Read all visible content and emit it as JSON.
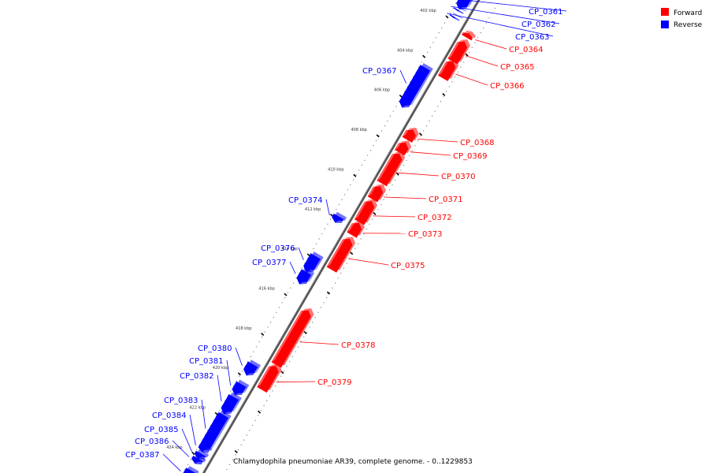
{
  "caption": "Chlamydophila pneumoniae AR39, complete genome. - 0..1229853",
  "legend": [
    {
      "label": "Forward",
      "color": "#ff0000"
    },
    {
      "label": "Reverse",
      "color": "#0000ff"
    }
  ],
  "colors": {
    "forward": "#ff0000",
    "reverse": "#0000ff",
    "backbone": "#555555"
  },
  "kbp_ticks": [
    "402 kbp",
    "404 kbp",
    "406 kbp",
    "408 kbp",
    "410 kbp",
    "412 kbp",
    "414 kbp",
    "416 kbp",
    "418 kbp",
    "420 kbp",
    "422 kbp",
    "424 kbp"
  ],
  "genes": [
    {
      "label": "CP_0361",
      "strand": "reverse",
      "start_kbp": 400.85,
      "end_kbp": 401.45
    },
    {
      "label": "CP_0362",
      "strand": "reverse",
      "start_kbp": 401.5,
      "end_kbp": 401.55
    },
    {
      "label": "CP_0363",
      "strand": "reverse",
      "start_kbp": 401.85,
      "end_kbp": 401.9
    },
    {
      "label": "CP_0364",
      "strand": "forward",
      "start_kbp": 402.15,
      "end_kbp": 402.35
    },
    {
      "label": "CP_0365",
      "strand": "forward",
      "start_kbp": 402.55,
      "end_kbp": 403.55
    },
    {
      "label": "CP_0366",
      "strand": "forward",
      "start_kbp": 403.55,
      "end_kbp": 404.4
    },
    {
      "label": "CP_0367",
      "strand": "reverse",
      "start_kbp": 404.4,
      "end_kbp": 406.4
    },
    {
      "label": "CP_0368",
      "strand": "forward",
      "start_kbp": 407.0,
      "end_kbp": 407.5
    },
    {
      "label": "CP_0369",
      "strand": "forward",
      "start_kbp": 407.65,
      "end_kbp": 408.15
    },
    {
      "label": "CP_0370",
      "strand": "forward",
      "start_kbp": 408.2,
      "end_kbp": 409.7
    },
    {
      "label": "CP_0371",
      "strand": "forward",
      "start_kbp": 409.85,
      "end_kbp": 410.5
    },
    {
      "label": "CP_0372",
      "strand": "forward",
      "start_kbp": 410.6,
      "end_kbp": 411.65
    },
    {
      "label": "CP_0373",
      "strand": "forward",
      "start_kbp": 411.7,
      "end_kbp": 412.3
    },
    {
      "label": "CP_0374",
      "strand": "reverse",
      "start_kbp": 411.9,
      "end_kbp": 412.2
    },
    {
      "label": "CP_0375",
      "strand": "forward",
      "start_kbp": 412.5,
      "end_kbp": 414.05
    },
    {
      "label": "CP_0376",
      "strand": "reverse",
      "start_kbp": 413.9,
      "end_kbp": 414.7
    },
    {
      "label": "CP_0377",
      "strand": "reverse",
      "start_kbp": 414.7,
      "end_kbp": 415.3
    },
    {
      "label": "CP_0378",
      "strand": "forward",
      "start_kbp": 416.1,
      "end_kbp": 418.85
    },
    {
      "label": "CP_0379",
      "strand": "forward",
      "start_kbp": 418.9,
      "end_kbp": 420.1
    },
    {
      "label": "CP_0380",
      "strand": "reverse",
      "start_kbp": 419.35,
      "end_kbp": 419.9
    },
    {
      "label": "CP_0381",
      "strand": "reverse",
      "start_kbp": 420.35,
      "end_kbp": 420.9
    },
    {
      "label": "CP_0382",
      "strand": "reverse",
      "start_kbp": 421.0,
      "end_kbp": 421.85
    },
    {
      "label": "CP_0383",
      "strand": "reverse",
      "start_kbp": 421.9,
      "end_kbp": 423.7
    },
    {
      "label": "CP_0384",
      "strand": "reverse",
      "start_kbp": 423.55,
      "end_kbp": 423.75
    },
    {
      "label": "CP_0385",
      "strand": "reverse",
      "start_kbp": 423.85,
      "end_kbp": 424.1
    },
    {
      "label": "CP_0386",
      "strand": "reverse",
      "start_kbp": 424.1,
      "end_kbp": 424.35
    },
    {
      "label": "CP_0387",
      "strand": "reverse",
      "start_kbp": 424.7,
      "end_kbp": 425.2
    }
  ]
}
